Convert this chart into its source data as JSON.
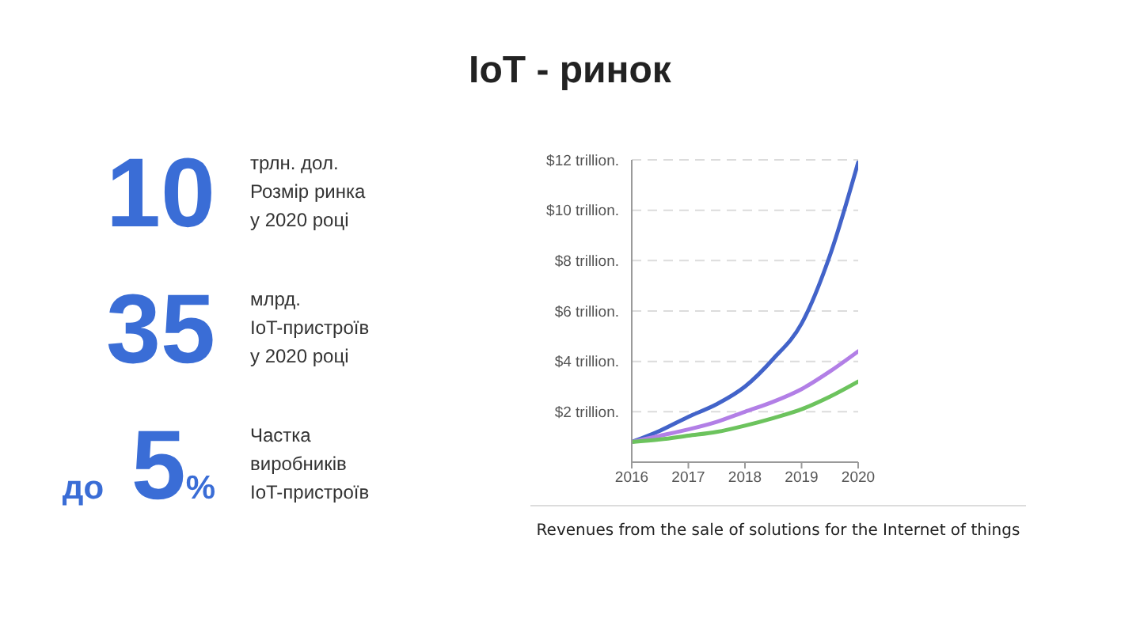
{
  "chart_data": [
    {
      "type": "other",
      "title": "IoT - ринок",
      "annotations": [
        "10",
        "трлн. дол.\nРозмір ринка\nу 2020 році",
        "35",
        "млрд.\nIoT-пристроїв\nу 2020 році",
        "до 5%",
        "Частка\nвиробників\nIoT-пристроїв"
      ]
    },
    {
      "type": "line",
      "x": [
        2016,
        2016.5,
        2017,
        2017.5,
        2018,
        2018.5,
        2019,
        2019.5,
        2020
      ],
      "series": [
        {
          "color": "#4263c9",
          "values": [
            0.8,
            1.25,
            1.8,
            2.3,
            3.0,
            4.1,
            5.5,
            8.2,
            11.9
          ]
        },
        {
          "color": "#b27fe6",
          "values": [
            0.8,
            1.05,
            1.3,
            1.6,
            2.0,
            2.4,
            2.9,
            3.6,
            4.4
          ]
        },
        {
          "color": "#6cc35d",
          "values": [
            0.8,
            0.9,
            1.05,
            1.2,
            1.45,
            1.75,
            2.1,
            2.6,
            3.2
          ]
        }
      ],
      "xlim": [
        2016,
        2020
      ],
      "xticks": [
        2016,
        2017,
        2018,
        2019,
        2020
      ],
      "ylim": [
        0,
        12
      ],
      "yticks": [
        {
          "value": 2,
          "label": "$2 trillion."
        },
        {
          "value": 4,
          "label": "$4 trillion."
        },
        {
          "value": 6,
          "label": "$6 trillion."
        },
        {
          "value": 8,
          "label": "$8 trillion."
        },
        {
          "value": 10,
          "label": "$10 trillion."
        },
        {
          "value": 12,
          "label": "$12 trillion."
        }
      ],
      "grid": "y",
      "marker": "none",
      "line_style": "solid",
      "annotations": [
        "Revenues from the sale of solutions for the Internet of things"
      ]
    }
  ]
}
